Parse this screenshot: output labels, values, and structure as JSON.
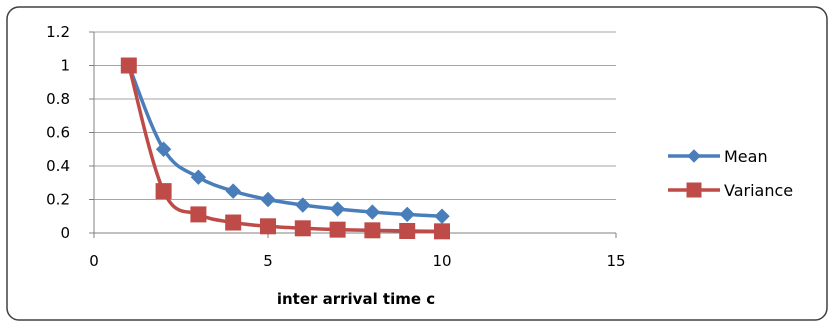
{
  "chart_data": {
    "type": "line",
    "title": "",
    "xlabel": "inter  arrival time c",
    "ylabel": "",
    "xlim": [
      0,
      15
    ],
    "ylim": [
      0,
      1.2
    ],
    "x_ticks": [
      "0",
      "5",
      "10",
      "15"
    ],
    "y_ticks": [
      "0",
      "0.2",
      "0.4",
      "0.6",
      "0.8",
      "1",
      "1.2"
    ],
    "grid": "horizontal",
    "legend_position": "right",
    "series": [
      {
        "name": "Mean",
        "color": "#4A7EBB",
        "marker": "diamond",
        "x": [
          1,
          2,
          3,
          4,
          5,
          6,
          7,
          8,
          9,
          10
        ],
        "y": [
          1,
          0.5,
          0.333,
          0.25,
          0.2,
          0.167,
          0.143,
          0.125,
          0.111,
          0.1
        ]
      },
      {
        "name": "Variance",
        "color": "#BE4B48",
        "marker": "square",
        "x": [
          1,
          2,
          3,
          4,
          5,
          6,
          7,
          8,
          9,
          10
        ],
        "y": [
          1,
          0.25,
          0.111,
          0.0625,
          0.04,
          0.028,
          0.02,
          0.016,
          0.012,
          0.01
        ]
      }
    ]
  }
}
